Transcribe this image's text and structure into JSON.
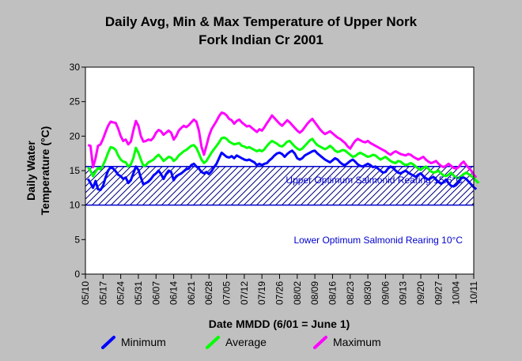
{
  "chart_data": {
    "type": "line",
    "title_line1": "Daily Avg, Min & Max Temperature of Upper Nork",
    "title_line2": "Fork Indian Cr 2001",
    "xlabel": "Date MMDD (6/01 = June 1)",
    "ylabel_line1": "Daily Water",
    "ylabel_line2": "Temperature (°C)",
    "ylim": [
      0,
      30
    ],
    "yticks": [
      "0",
      "5",
      "10",
      "15",
      "20",
      "25",
      "30"
    ],
    "xticks": [
      "05/10",
      "05/17",
      "05/24",
      "05/31",
      "06/07",
      "06/14",
      "06/21",
      "06/28",
      "07/05",
      "07/12",
      "07/19",
      "07/26",
      "08/02",
      "08/09",
      "08/16",
      "08/23",
      "08/30",
      "09/06",
      "09/13",
      "09/20",
      "09/27",
      "10/04",
      "10/11"
    ],
    "band": {
      "upper": 15.6,
      "lower": 10,
      "upper_label": "Upper Optimum Salmonid Rearing 15.6°C",
      "lower_label": "Lower Optimum Salmonid Rearing 10°C",
      "color": "#0000cc"
    },
    "start_date": "05/10",
    "series": [
      {
        "name": "Minimum",
        "color": "#0000ff",
        "start_date": "05/11",
        "values": [
          13.8,
          13.2,
          12.5,
          13.5,
          12.3,
          12.2,
          12.8,
          14.0,
          15.0,
          15.5,
          15.3,
          14.9,
          14.4,
          14.2,
          13.8,
          14.0,
          13.2,
          13.6,
          14.6,
          15.6,
          15.1,
          14.0,
          13.0,
          13.2,
          13.4,
          13.8,
          14.3,
          14.6,
          15.0,
          14.5,
          13.8,
          14.5,
          15.0,
          14.8,
          13.6,
          14.2,
          14.4,
          14.6,
          14.9,
          15.2,
          15.3,
          15.8,
          16.0,
          15.6,
          15.3,
          14.8,
          14.6,
          14.8,
          14.5,
          14.9,
          15.5,
          16.0,
          16.8,
          17.6,
          17.3,
          17.0,
          16.9,
          17.1,
          16.8,
          17.2,
          17.0,
          16.8,
          16.6,
          16.5,
          16.6,
          16.4,
          16.2,
          15.8,
          16.0,
          15.8,
          16.0,
          16.1,
          16.5,
          16.8,
          17.2,
          17.5,
          17.6,
          17.4,
          17.0,
          17.4,
          17.7,
          17.9,
          17.5,
          16.8,
          16.6,
          16.8,
          17.2,
          17.4,
          17.6,
          17.8,
          17.9,
          17.5,
          17.2,
          16.9,
          16.6,
          16.4,
          16.2,
          16.5,
          16.8,
          16.6,
          16.2,
          15.9,
          15.8,
          16.1,
          16.4,
          16.6,
          16.3,
          15.9,
          15.7,
          15.6,
          15.8,
          16.0,
          15.8,
          15.5,
          15.6,
          15.3,
          15.0,
          14.7,
          14.8,
          15.3,
          15.6,
          15.4,
          15.0,
          14.7,
          14.6,
          14.8,
          15.0,
          14.7,
          14.5,
          14.3,
          14.1,
          14.4,
          14.6,
          14.2,
          13.9,
          13.7,
          13.9,
          14.1,
          13.7,
          13.4,
          13.1,
          13.3,
          13.7,
          13.2,
          12.8,
          12.7,
          12.9,
          13.3,
          13.9,
          14.0,
          13.8,
          13.4,
          13.0,
          12.6,
          12.3
        ]
      },
      {
        "name": "Average",
        "color": "#00ff00",
        "start_date": "05/11",
        "values": [
          15.5,
          15.0,
          14.2,
          14.8,
          15.4,
          15.2,
          15.8,
          16.6,
          17.6,
          18.4,
          18.3,
          18.0,
          17.2,
          16.6,
          16.3,
          16.2,
          15.6,
          15.9,
          16.8,
          18.3,
          17.6,
          16.6,
          15.7,
          15.8,
          16.2,
          16.4,
          16.6,
          17.0,
          17.3,
          16.9,
          16.4,
          16.7,
          17.0,
          16.9,
          16.4,
          16.7,
          17.2,
          17.5,
          17.8,
          18.0,
          18.3,
          18.6,
          18.7,
          18.3,
          17.5,
          16.6,
          16.1,
          16.4,
          17.0,
          17.6,
          18.1,
          18.6,
          19.1,
          19.7,
          19.8,
          19.6,
          19.2,
          19.0,
          18.8,
          18.9,
          19.0,
          18.6,
          18.5,
          18.3,
          18.4,
          18.2,
          18.0,
          17.8,
          18.0,
          17.8,
          18.1,
          18.6,
          19.0,
          19.3,
          19.1,
          18.9,
          18.6,
          18.5,
          18.8,
          19.2,
          19.3,
          18.9,
          18.5,
          18.2,
          18.0,
          18.2,
          18.6,
          19.0,
          19.4,
          19.6,
          19.1,
          18.7,
          18.5,
          18.3,
          18.1,
          18.3,
          18.6,
          18.3,
          17.9,
          17.7,
          17.8,
          18.0,
          17.9,
          17.6,
          17.3,
          17.0,
          17.1,
          17.4,
          17.6,
          17.4,
          17.2,
          17.0,
          17.1,
          17.3,
          17.2,
          16.9,
          16.6,
          16.8,
          17.0,
          16.7,
          16.4,
          16.2,
          16.1,
          16.4,
          16.3,
          16.0,
          15.8,
          15.9,
          16.1,
          15.9,
          15.6,
          15.3,
          15.1,
          15.4,
          15.6,
          15.3,
          14.9,
          14.7,
          14.8,
          15.0,
          14.6,
          14.3,
          14.2,
          14.4,
          14.7,
          14.3,
          14.0,
          13.9,
          14.2,
          14.5,
          14.7,
          14.5,
          14.2,
          14.0,
          13.5,
          13.2
        ]
      },
      {
        "name": "Maximum",
        "color": "#ff00ff",
        "start_date": "05/11",
        "values": [
          18.7,
          18.6,
          15.5,
          16.8,
          18.6,
          18.8,
          19.6,
          20.6,
          21.5,
          22.1,
          22.0,
          21.9,
          21.1,
          20.0,
          19.3,
          19.5,
          18.8,
          19.2,
          20.8,
          22.2,
          21.5,
          20.0,
          19.2,
          19.3,
          19.5,
          19.4,
          19.8,
          20.5,
          20.9,
          20.7,
          20.2,
          20.5,
          20.8,
          20.5,
          19.5,
          20.0,
          20.8,
          21.2,
          21.5,
          21.3,
          21.6,
          22.0,
          22.4,
          22.1,
          20.8,
          18.5,
          17.3,
          18.6,
          20.0,
          21.0,
          21.6,
          22.2,
          22.9,
          23.4,
          23.3,
          23.0,
          22.5,
          22.3,
          21.8,
          22.2,
          22.4,
          22.0,
          21.7,
          21.4,
          21.5,
          21.2,
          20.9,
          20.6,
          21.0,
          20.8,
          21.3,
          21.9,
          22.4,
          23.0,
          22.6,
          22.2,
          21.8,
          21.5,
          21.9,
          22.3,
          22.0,
          21.6,
          21.2,
          20.8,
          20.5,
          20.8,
          21.3,
          21.8,
          22.2,
          22.5,
          22.0,
          21.5,
          21.0,
          20.6,
          20.3,
          20.5,
          20.7,
          20.4,
          20.1,
          19.8,
          19.6,
          19.3,
          19.0,
          18.5,
          18.2,
          18.8,
          19.3,
          19.6,
          19.4,
          19.2,
          19.1,
          19.3,
          19.0,
          18.8,
          18.6,
          18.4,
          18.2,
          18.0,
          17.8,
          17.5,
          17.3,
          17.6,
          17.8,
          17.6,
          17.4,
          17.3,
          17.2,
          17.4,
          17.3,
          17.0,
          16.8,
          16.6,
          16.8,
          17.0,
          16.6,
          16.3,
          16.1,
          16.2,
          16.4,
          16.0,
          15.7,
          15.5,
          15.7,
          16.0,
          15.7,
          15.4,
          15.3,
          15.5,
          16.0,
          16.3,
          15.8,
          15.4,
          15.0,
          14.4,
          14.0
        ]
      }
    ],
    "legend_position": "bottom"
  }
}
